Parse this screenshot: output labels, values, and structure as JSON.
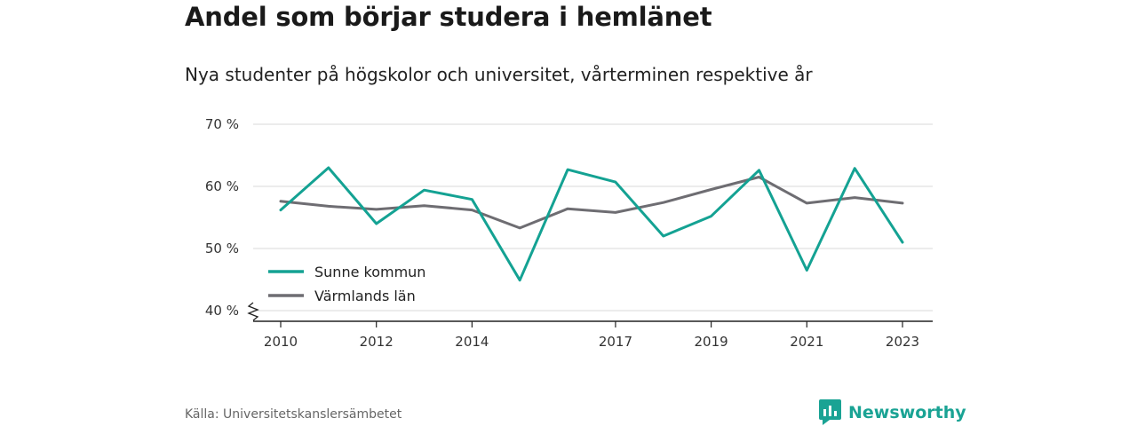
{
  "title": "Andel som börjar studera i hemlänet",
  "subtitle": "Nya studenter på högskolor och universitet, vårterminen respektive år",
  "source": "Källa: Universitetskanslersämbetet",
  "brand": "Newsworthy",
  "colors": {
    "sunne": "#14a293",
    "varmland": "#6e6d72",
    "grid": "#d9d9d9",
    "axis": "#222222",
    "brand": "#1aa394"
  },
  "chart_data": {
    "type": "line",
    "title": "Andel som börjar studera i hemlänet",
    "subtitle": "Nya studenter på högskolor och universitet, vårterminen respektive år",
    "x": [
      2010,
      2011,
      2012,
      2013,
      2014,
      2015,
      2016,
      2017,
      2018,
      2019,
      2020,
      2021,
      2022,
      2023
    ],
    "x_ticks": [
      2010,
      2012,
      2014,
      2017,
      2019,
      2021,
      2023
    ],
    "y_ticks": [
      40,
      50,
      60,
      70
    ],
    "y_tick_labels": [
      "40 %",
      "50 %",
      "60 %",
      "70 %"
    ],
    "ylim": [
      40,
      70
    ],
    "y_axis_break": true,
    "grid": "horizontal",
    "legend_position": "bottom-left",
    "series": [
      {
        "name": "Sunne kommun",
        "color": "#14a293",
        "values": [
          56.2,
          63.0,
          54.0,
          59.4,
          57.9,
          44.9,
          62.7,
          60.7,
          52.0,
          55.2,
          62.6,
          46.5,
          62.9,
          51.0
        ]
      },
      {
        "name": "Värmlands län",
        "color": "#6e6d72",
        "values": [
          57.6,
          56.8,
          56.3,
          56.9,
          56.2,
          53.3,
          56.4,
          55.8,
          57.4,
          59.5,
          61.5,
          57.3,
          58.2,
          57.3
        ]
      }
    ]
  }
}
